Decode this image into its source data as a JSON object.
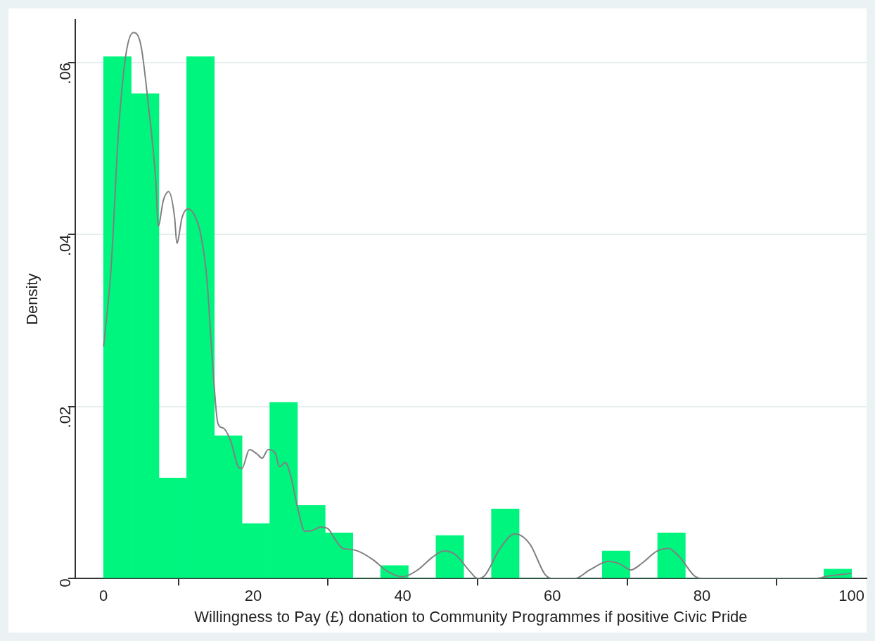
{
  "chart_data": {
    "type": "histogram",
    "xlabel": "Willingness to Pay (£) donation to Community Programmes if positive Civic Pride",
    "ylabel": "Density",
    "bins": [
      0,
      3.7,
      7.41,
      11.11,
      14.81,
      18.52,
      22.22,
      25.93,
      29.63,
      33.33,
      37.04,
      40.74,
      44.44,
      48.15,
      51.85,
      55.56,
      59.26,
      62.96,
      66.67,
      70.37,
      74.07,
      77.78,
      81.48,
      85.19,
      88.89,
      92.59,
      96.3,
      100
    ],
    "values": [
      0.0607,
      0.0564,
      0.0117,
      0.0607,
      0.0166,
      0.0064,
      0.0205,
      0.0085,
      0.0053,
      0,
      0.0015,
      0,
      0.005,
      0,
      0.0081,
      0,
      0,
      0,
      0.0032,
      0,
      0.0053,
      0,
      0,
      0,
      0,
      0,
      0.0011
    ],
    "color": "#00f57f",
    "series": [
      {
        "type": "line",
        "color": "#808080",
        "x": [
          0,
          1,
          2,
          3,
          4,
          5,
          6,
          7,
          7.3,
          8,
          8.7,
          9.5,
          9.8,
          10.5,
          11.3,
          12.3,
          13,
          13.8,
          14.5,
          15.3,
          16,
          17,
          18,
          18.5,
          19.5,
          20.5,
          21.2,
          22,
          23,
          23.5,
          24.3,
          25,
          26,
          26.9,
          28,
          29,
          30,
          31,
          32,
          33,
          34,
          36,
          38,
          40,
          42,
          44,
          45.5,
          47,
          49,
          50,
          51,
          53,
          55,
          57,
          59,
          60,
          63,
          65,
          67.5,
          69,
          70.5,
          72,
          74,
          75.5,
          77,
          79,
          80,
          95,
          97,
          100
        ],
        "values": [
          0.027,
          0.036,
          0.052,
          0.061,
          0.0635,
          0.062,
          0.055,
          0.046,
          0.041,
          0.044,
          0.045,
          0.042,
          0.039,
          0.042,
          0.043,
          0.042,
          0.04,
          0.035,
          0.026,
          0.018,
          0.0175,
          0.016,
          0.013,
          0.0128,
          0.015,
          0.0145,
          0.014,
          0.015,
          0.0145,
          0.013,
          0.0135,
          0.012,
          0.008,
          0.0055,
          0.0056,
          0.006,
          0.0058,
          0.0045,
          0.0035,
          0.0034,
          0.0032,
          0.0022,
          0.0008,
          0.0002,
          0.001,
          0.0025,
          0.0032,
          0.0028,
          0.0008,
          0,
          0.0004,
          0.0035,
          0.0052,
          0.004,
          0.0005,
          0,
          0,
          0.001,
          0.002,
          0.0017,
          0.001,
          0.0018,
          0.0032,
          0.0035,
          0.0025,
          0.0003,
          0,
          0,
          0.0003,
          0.0006
        ]
      }
    ],
    "xlim": [
      -3.8,
      102
    ],
    "xticks": [
      0,
      20,
      40,
      60,
      80,
      100
    ],
    "ylim": [
      0,
      0.065
    ],
    "yticks": [
      0,
      {
        "value": 0.02,
        "label": ".02"
      },
      {
        "value": 0.04,
        "label": ".04"
      },
      {
        "value": 0.06,
        "label": ".06"
      }
    ],
    "grid": "y",
    "legend": false,
    "marker": "none",
    "line_style": "solid"
  }
}
